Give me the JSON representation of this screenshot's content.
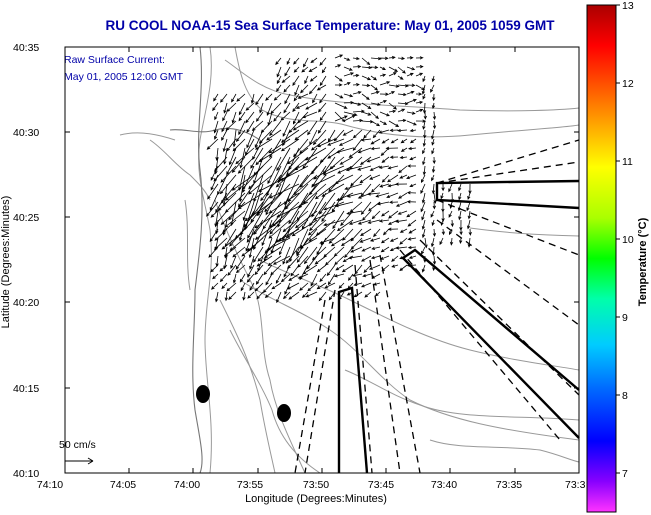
{
  "title": "RU COOL  NOAA-15  Sea Surface Temperature:  May 01, 2005 1059 GMT",
  "overlay": {
    "line1": "Raw Surface Current:",
    "line2": "May 01, 2005 12:00 GMT"
  },
  "axes": {
    "xlabel": "Longitude (Degrees:Minutes)",
    "ylabel": "Latitude (Degrees:Minutes)",
    "x_ticks": [
      "74:10",
      "74:05",
      "74:00",
      "73:55",
      "73:50",
      "73:45",
      "73:40",
      "73:35",
      "73:3"
    ],
    "y_ticks": [
      "40:35",
      "40:30",
      "40:25",
      "40:20",
      "40:15",
      "40:10"
    ]
  },
  "colorbar": {
    "label": "Temperature (°C)",
    "ticks": [
      "13",
      "12",
      "11",
      "10",
      "9",
      "8",
      "7"
    ],
    "range": [
      6.5,
      13
    ],
    "colors": [
      "#ff33ff",
      "#8800ff",
      "#0000ff",
      "#0066ff",
      "#00ccff",
      "#00ffaa",
      "#00ff00",
      "#aaff00",
      "#ffff00",
      "#ffaa00",
      "#ff5500",
      "#ff0000",
      "#aa0000"
    ]
  },
  "scale": {
    "label": "50 cm/s"
  },
  "map_style": {
    "land_color": "#ffffff",
    "contour_color": "#999999",
    "arrow_color": "#000000"
  }
}
